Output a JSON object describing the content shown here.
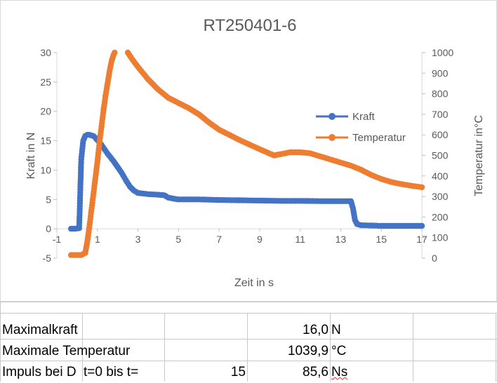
{
  "chart_data": {
    "type": "line",
    "title": "RT250401-6",
    "xlabel": "Zeit in s",
    "ylabel": "Kraft in N",
    "y2label": "Temperatur in°C",
    "xlim": [
      -1,
      17
    ],
    "ylim": [
      -5,
      30
    ],
    "y2lim": [
      0,
      1000
    ],
    "x_ticks": [
      "-1",
      "1",
      "3",
      "5",
      "7",
      "9",
      "11",
      "13",
      "15",
      "17"
    ],
    "y_ticks": [
      "-5",
      "0",
      "5",
      "10",
      "15",
      "20",
      "25",
      "30"
    ],
    "y2_ticks": [
      "0",
      "100",
      "200",
      "300",
      "400",
      "500",
      "600",
      "700",
      "800",
      "900",
      "1000"
    ],
    "legend_position": "right",
    "series": [
      {
        "name": "Kraft",
        "axis": "left",
        "color": "#4472c4",
        "points": [
          [
            -0.3,
            0
          ],
          [
            -0.1,
            0
          ],
          [
            0.1,
            0.1
          ],
          [
            0.2,
            11.8
          ],
          [
            0.3,
            15
          ],
          [
            0.4,
            15.8
          ],
          [
            0.5,
            16
          ],
          [
            0.6,
            16
          ],
          [
            0.7,
            15.9
          ],
          [
            0.8,
            15.8
          ],
          [
            0.9,
            15.5
          ],
          [
            1.0,
            15.1
          ],
          [
            1.2,
            14.3
          ],
          [
            1.5,
            12.8
          ],
          [
            1.8,
            11.5
          ],
          [
            2.0,
            10.5
          ],
          [
            2.2,
            9.5
          ],
          [
            2.4,
            8.3
          ],
          [
            2.6,
            7.2
          ],
          [
            2.8,
            6.5
          ],
          [
            3.0,
            6.1
          ],
          [
            3.5,
            5.9
          ],
          [
            4.0,
            5.8
          ],
          [
            4.3,
            5.7
          ],
          [
            4.5,
            5.3
          ],
          [
            4.8,
            5.1
          ],
          [
            5.0,
            5.0
          ],
          [
            6.0,
            5.0
          ],
          [
            7.0,
            4.9
          ],
          [
            8.0,
            4.85
          ],
          [
            9.0,
            4.8
          ],
          [
            10.0,
            4.75
          ],
          [
            11.0,
            4.75
          ],
          [
            12.0,
            4.7
          ],
          [
            13.0,
            4.7
          ],
          [
            13.5,
            4.7
          ],
          [
            13.6,
            3.5
          ],
          [
            13.7,
            1.5
          ],
          [
            13.8,
            0.8
          ],
          [
            14.0,
            0.6
          ],
          [
            15.0,
            0.5
          ],
          [
            16.0,
            0.5
          ],
          [
            17.0,
            0.5
          ]
        ]
      },
      {
        "name": "Temperatur",
        "axis": "right",
        "color": "#ed7d31",
        "points": [
          [
            -0.3,
            15
          ],
          [
            0.0,
            15
          ],
          [
            0.2,
            15
          ],
          [
            0.4,
            25
          ],
          [
            0.5,
            80
          ],
          [
            0.6,
            150
          ],
          [
            0.7,
            230
          ],
          [
            0.8,
            310
          ],
          [
            0.9,
            390
          ],
          [
            1.0,
            470
          ],
          [
            1.1,
            560
          ],
          [
            1.2,
            640
          ],
          [
            1.3,
            720
          ],
          [
            1.4,
            790
          ],
          [
            1.5,
            850
          ],
          [
            1.6,
            910
          ],
          [
            1.7,
            960
          ],
          [
            1.8,
            990
          ],
          [
            1.85,
            1000
          ],
          [
            null,
            null
          ],
          [
            2.5,
            1000
          ],
          [
            2.7,
            970
          ],
          [
            3.0,
            930
          ],
          [
            3.5,
            870
          ],
          [
            4.0,
            820
          ],
          [
            4.5,
            780
          ],
          [
            5.0,
            755
          ],
          [
            5.5,
            730
          ],
          [
            6.0,
            700
          ],
          [
            6.5,
            660
          ],
          [
            7.0,
            625
          ],
          [
            8.0,
            575
          ],
          [
            9.0,
            530
          ],
          [
            9.7,
            500
          ],
          [
            10.0,
            505
          ],
          [
            10.5,
            515
          ],
          [
            11.0,
            515
          ],
          [
            11.5,
            510
          ],
          [
            12.0,
            495
          ],
          [
            12.5,
            480
          ],
          [
            13.0,
            465
          ],
          [
            13.5,
            450
          ],
          [
            14.0,
            430
          ],
          [
            14.5,
            405
          ],
          [
            15.0,
            385
          ],
          [
            15.5,
            370
          ],
          [
            16.0,
            360
          ],
          [
            16.5,
            352
          ],
          [
            17.0,
            345
          ]
        ]
      }
    ]
  },
  "table": {
    "rows": [
      {
        "label": "Maximalkraft",
        "param": "",
        "value": "16,0",
        "unit": "N",
        "unit_flag": false
      },
      {
        "label": "Maximale Temperatur",
        "param": "",
        "value": "1039,9",
        "unit": "°C",
        "unit_flag": false
      },
      {
        "label": "Impuls bei D",
        "label2": "t=0 bis t=",
        "param": "15",
        "value": "85,6",
        "unit": "Ns",
        "unit_flag": true
      }
    ]
  }
}
